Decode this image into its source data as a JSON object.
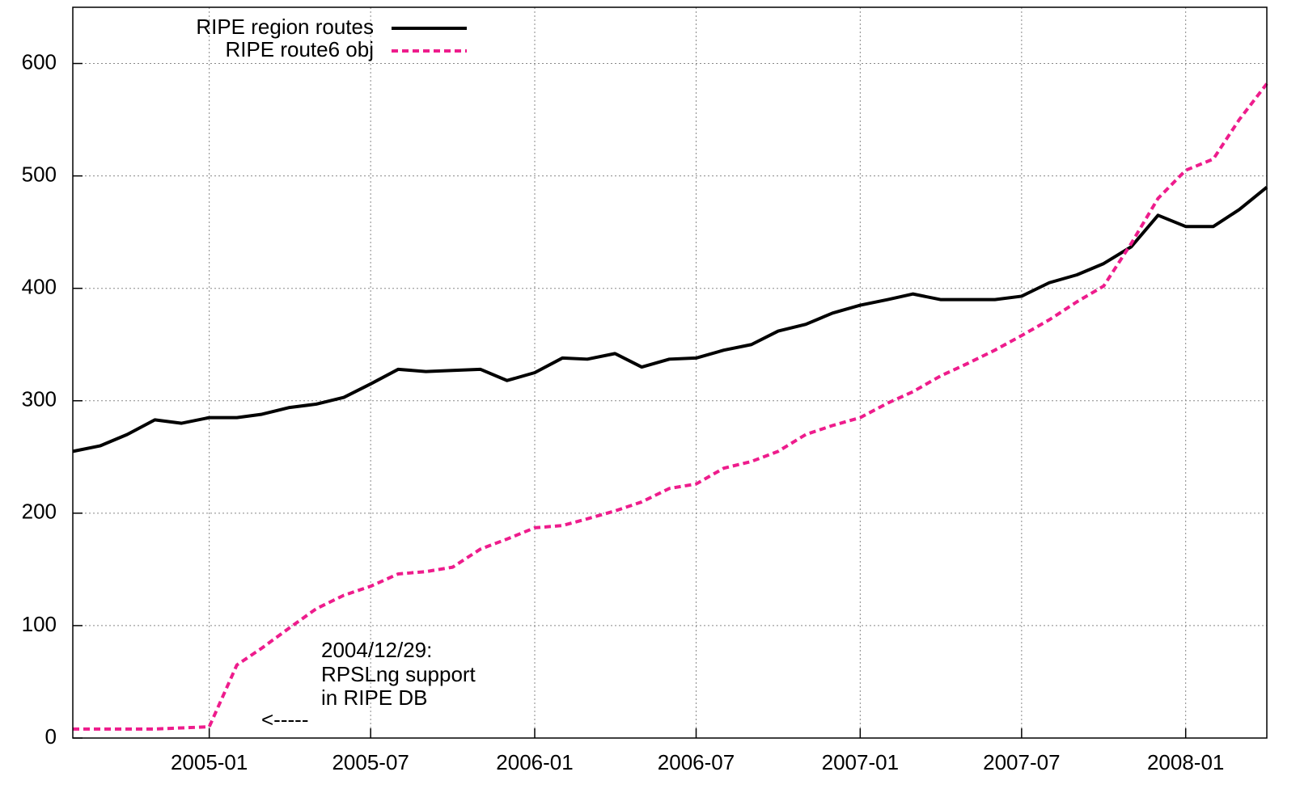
{
  "chart_data": {
    "type": "line",
    "x": [
      "2004-08",
      "2004-09",
      "2004-10",
      "2004-11",
      "2004-12",
      "2005-01",
      "2005-02",
      "2005-03",
      "2005-04",
      "2005-05",
      "2005-06",
      "2005-07",
      "2005-08",
      "2005-09",
      "2005-10",
      "2005-11",
      "2005-12",
      "2006-01",
      "2006-02",
      "2006-03",
      "2006-04",
      "2006-05",
      "2006-06",
      "2006-07",
      "2006-08",
      "2006-09",
      "2006-10",
      "2006-11",
      "2006-12",
      "2007-01",
      "2007-02",
      "2007-03",
      "2007-04",
      "2007-05",
      "2007-06",
      "2007-07",
      "2007-08",
      "2007-09",
      "2007-10",
      "2007-11",
      "2007-12",
      "2008-01",
      "2008-02",
      "2008-03",
      "2008-04"
    ],
    "series": [
      {
        "name": "RIPE region routes",
        "color": "#000000",
        "dash": false,
        "values": [
          255,
          260,
          270,
          283,
          280,
          285,
          285,
          288,
          294,
          297,
          303,
          315,
          328,
          326,
          327,
          328,
          318,
          325,
          338,
          337,
          342,
          330,
          337,
          338,
          345,
          350,
          362,
          368,
          378,
          385,
          390,
          395,
          390,
          390,
          390,
          393,
          405,
          412,
          422,
          437,
          465,
          455,
          455,
          470,
          490
        ]
      },
      {
        "name": "RIPE route6 obj",
        "color": "#ee1c8c",
        "dash": true,
        "values": [
          8,
          8,
          8,
          8,
          9,
          10,
          65,
          80,
          98,
          115,
          127,
          135,
          146,
          148,
          152,
          168,
          177,
          187,
          189,
          195,
          202,
          210,
          222,
          226,
          240,
          246,
          255,
          270,
          278,
          285,
          298,
          308,
          322,
          333,
          345,
          358,
          372,
          388,
          402,
          440,
          480,
          505,
          515,
          550,
          582
        ]
      }
    ],
    "xlim": [
      "2004-08",
      "2008-04"
    ],
    "xticks": [
      "2005-01",
      "2005-07",
      "2006-01",
      "2006-07",
      "2007-01",
      "2007-07",
      "2008-01"
    ],
    "ylim": [
      0,
      650
    ],
    "yticks": [
      0,
      100,
      200,
      300,
      400,
      500,
      600
    ],
    "grid": true,
    "legend": "top-left",
    "annotations": [
      "2004/12/29:",
      "RPSLng support",
      "in RIPE DB",
      "<-----"
    ]
  }
}
